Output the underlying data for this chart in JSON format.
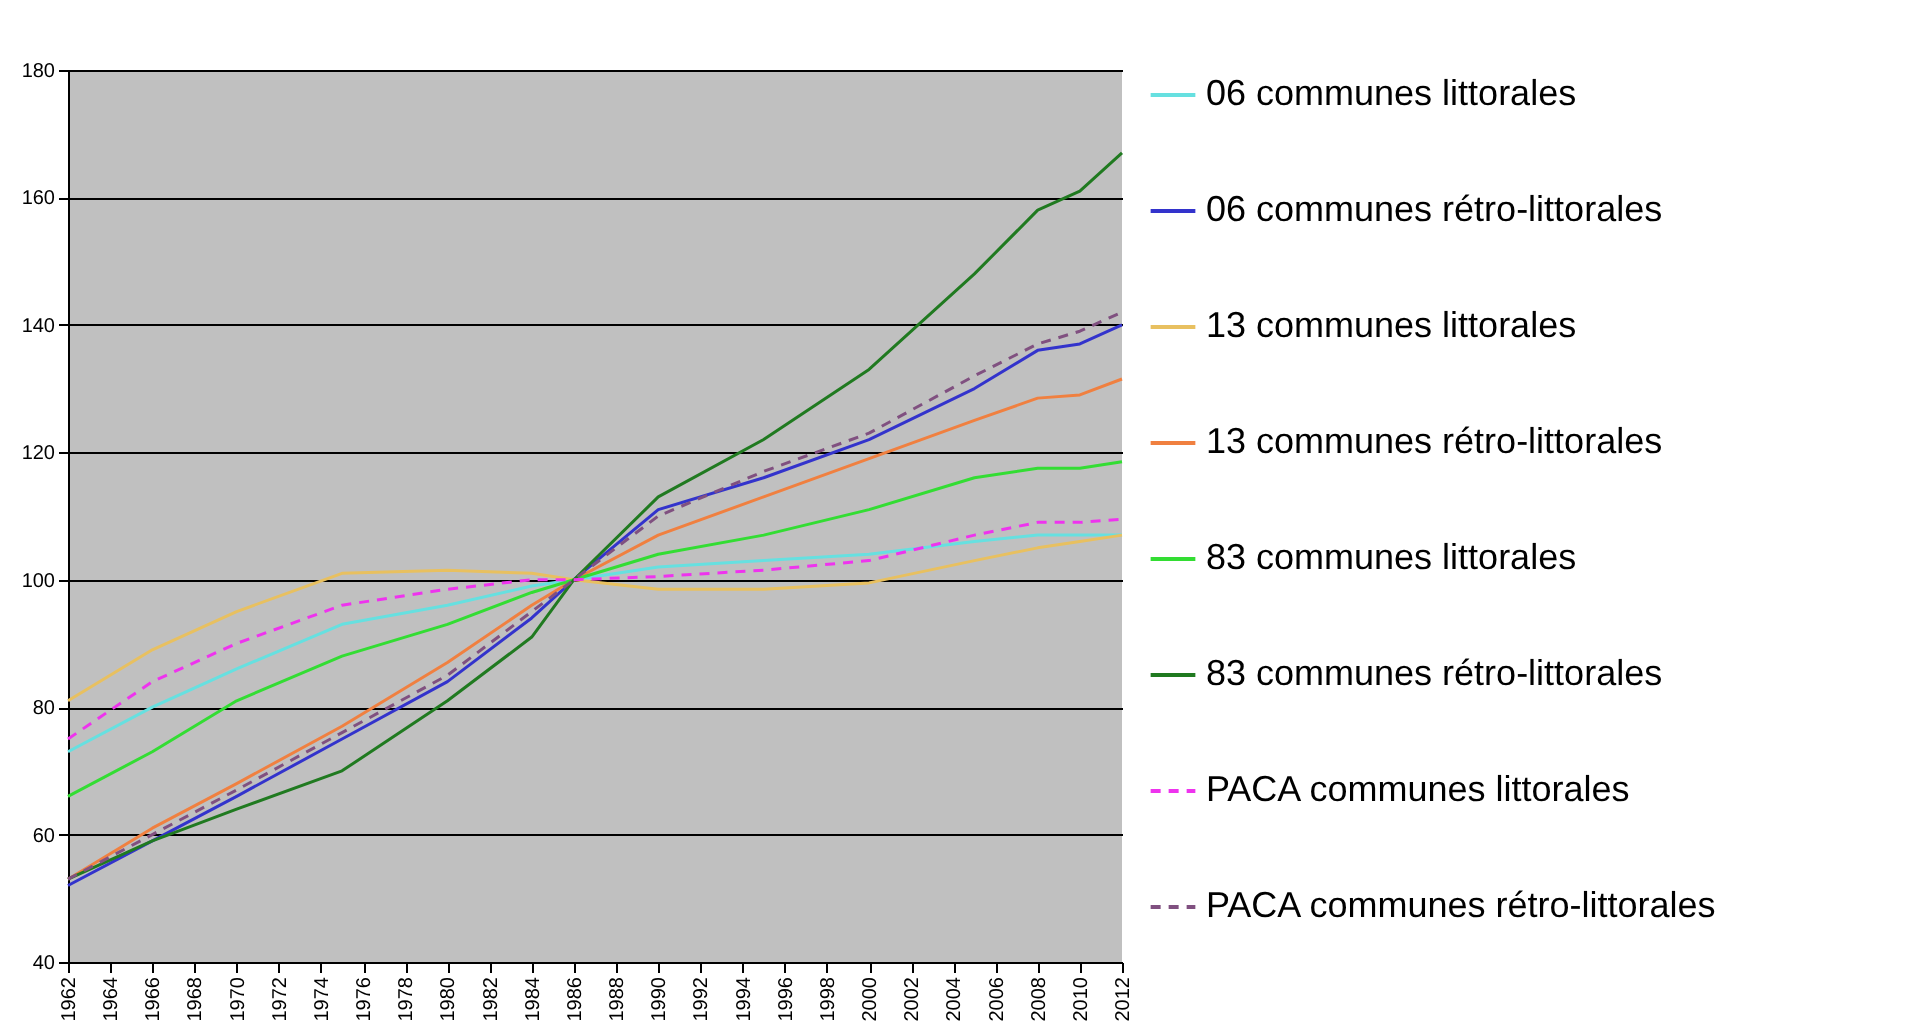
{
  "chart_data": {
    "type": "line",
    "x": [
      1962,
      1966,
      1970,
      1975,
      1980,
      1984,
      1986,
      1990,
      1995,
      2000,
      2005,
      2008,
      2010,
      2012
    ],
    "series": [
      {
        "name": "06 communes littorales",
        "color": "#66e0e0",
        "line_style": "solid",
        "values": [
          73,
          80,
          86,
          93,
          96,
          99,
          100,
          102,
          103,
          104,
          106,
          107,
          107,
          107
        ]
      },
      {
        "name": "06 communes rétro-littorales",
        "color": "#3333cc",
        "line_style": "solid",
        "values": [
          52,
          59,
          66,
          75,
          84,
          94,
          100,
          111,
          116,
          122,
          130,
          136,
          137,
          140
        ]
      },
      {
        "name": "13 communes littorales",
        "color": "#e8c060",
        "line_style": "solid",
        "values": [
          81,
          89,
          95,
          101,
          101.5,
          101,
          100,
          98.5,
          98.5,
          99.5,
          103,
          105,
          106,
          107
        ]
      },
      {
        "name": "13 communes rétro-littorales",
        "color": "#f08040",
        "line_style": "solid",
        "values": [
          53,
          61,
          68,
          77,
          87,
          96,
          100,
          107,
          113,
          119,
          125,
          128.5,
          129,
          131.5
        ]
      },
      {
        "name": "83 communes littorales",
        "color": "#33dd33",
        "line_style": "solid",
        "values": [
          66,
          73,
          81,
          88,
          93,
          98,
          100,
          104,
          107,
          111,
          116,
          117.5,
          117.5,
          118.5
        ]
      },
      {
        "name": "83 communes rétro-littorales",
        "color": "#207a20",
        "line_style": "solid",
        "values": [
          53,
          59,
          64,
          70,
          81,
          91,
          100,
          113,
          122,
          133,
          148,
          158,
          161,
          167
        ]
      },
      {
        "name": "PACA communes littorales",
        "color": "#ee33ee",
        "line_style": "dashed",
        "values": [
          75,
          84,
          90,
          96,
          98.5,
          100,
          100,
          100.5,
          101.5,
          103,
          107,
          109,
          109,
          109.5
        ]
      },
      {
        "name": "PACA communes rétro-littorales",
        "color": "#805080",
        "line_style": "dashed",
        "values": [
          53,
          60,
          67,
          76,
          85,
          95,
          100,
          110,
          117,
          123,
          132,
          137,
          139,
          142
        ]
      }
    ],
    "xlim": [
      1962,
      2012
    ],
    "xticks": [
      1962,
      1964,
      1966,
      1968,
      1970,
      1972,
      1974,
      1976,
      1978,
      1980,
      1982,
      1984,
      1986,
      1988,
      1990,
      1992,
      1994,
      1996,
      1998,
      2000,
      2002,
      2004,
      2006,
      2008,
      2010,
      2012
    ],
    "ylim": [
      40,
      180
    ],
    "yticks": [
      40,
      60,
      80,
      100,
      120,
      140,
      160,
      180
    ],
    "grid": "y",
    "legend": "right"
  }
}
